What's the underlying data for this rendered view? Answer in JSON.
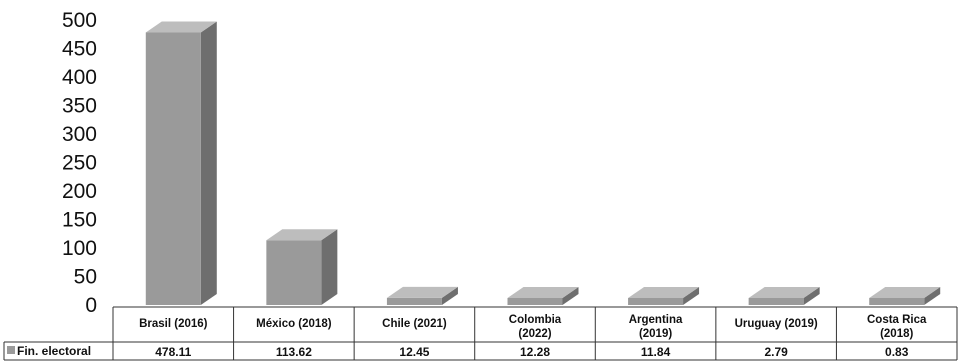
{
  "chart_data": {
    "type": "bar",
    "categories": [
      "Brasil (2016)",
      "México (2018)",
      "Chile (2021)",
      "Colombia (2022)",
      "Argentina (2019)",
      "Uruguay (2019)",
      "Costa Rica (2018)"
    ],
    "series": [
      {
        "name": "Fin. electoral",
        "values": [
          478.11,
          113.62,
          12.45,
          12.28,
          11.84,
          2.79,
          0.83
        ]
      }
    ],
    "value_labels": [
      "478.11",
      "113.62",
      "12.45",
      "12.28",
      "11.84",
      "2.79",
      "0.83"
    ],
    "ylim": [
      0,
      500
    ],
    "yticks": [
      0,
      50,
      100,
      150,
      200,
      250,
      300,
      350,
      400,
      450,
      500
    ],
    "grid": false,
    "legend": "data-table-left",
    "bar_style": "3d",
    "colors": {
      "bar_front": "#9a9a9a",
      "bar_side": "#6e6e6e",
      "bar_top": "#bdbdbd",
      "legend_marker": "#9a9a9a"
    }
  }
}
